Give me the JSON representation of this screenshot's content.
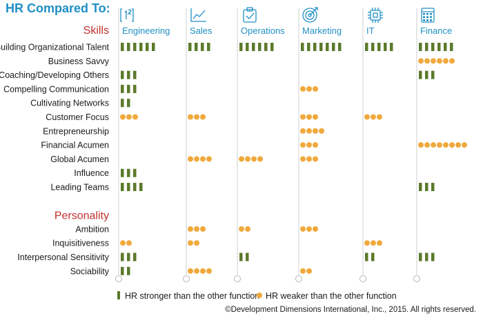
{
  "chart_data": {
    "type": "table",
    "title": "HR Compared To:",
    "columns": [
      "Engineering",
      "Sales",
      "Operations",
      "Marketing",
      "IT",
      "Finance"
    ],
    "column_icons": [
      "numbers-icon",
      "line-chart-icon",
      "clipboard-check-icon",
      "target-icon",
      "chip-icon",
      "calculator-icon"
    ],
    "sections": [
      {
        "name": "Skills",
        "rows": [
          {
            "label": "Building Organizational Talent",
            "values": [
              6,
              4,
              6,
              7,
              5,
              6
            ]
          },
          {
            "label": "Business Savvy",
            "values": [
              0,
              0,
              0,
              0,
              0,
              -6
            ]
          },
          {
            "label": "Coaching/Developing Others",
            "values": [
              3,
              0,
              0,
              0,
              0,
              3
            ]
          },
          {
            "label": "Compelling Communication",
            "values": [
              3,
              0,
              0,
              -3,
              0,
              0
            ]
          },
          {
            "label": "Cultivating Networks",
            "values": [
              2,
              0,
              0,
              0,
              0,
              0
            ]
          },
          {
            "label": "Customer Focus",
            "values": [
              -3,
              -3,
              0,
              -3,
              -3,
              0
            ]
          },
          {
            "label": "Entrepreneurship",
            "values": [
              0,
              0,
              0,
              -4,
              0,
              0
            ]
          },
          {
            "label": "Financial Acumen",
            "values": [
              0,
              0,
              0,
              -3,
              0,
              -8
            ]
          },
          {
            "label": "Global Acumen",
            "values": [
              0,
              -4,
              -4,
              -3,
              0,
              0
            ]
          },
          {
            "label": "Influence",
            "values": [
              3,
              0,
              0,
              0,
              0,
              0
            ]
          },
          {
            "label": "Leading Teams",
            "values": [
              4,
              0,
              0,
              0,
              0,
              3
            ]
          }
        ]
      },
      {
        "name": "Personality",
        "rows": [
          {
            "label": "Ambition",
            "values": [
              0,
              -3,
              -2,
              -3,
              0,
              0
            ]
          },
          {
            "label": "Inquisitiveness",
            "values": [
              -2,
              -2,
              0,
              0,
              -3,
              0
            ]
          },
          {
            "label": "Interpersonal Sensitivity",
            "values": [
              3,
              0,
              2,
              0,
              2,
              3
            ]
          },
          {
            "label": "Sociability",
            "values": [
              2,
              -4,
              0,
              -2,
              0,
              0
            ]
          }
        ]
      }
    ],
    "legend": [
      {
        "symbol": "bar",
        "color": "#5b7a2b",
        "label": "HR stronger than the other function"
      },
      {
        "symbol": "dot",
        "color": "#f0a93c",
        "label": "HR weaker than the other function"
      }
    ],
    "value_encoding": "positive = count of green bars (HR stronger); negative = count of orange dots (HR weaker)",
    "legend_placement": "bottom-left",
    "colors": {
      "stronger": "#5b7a2b",
      "weaker": "#f0a93c",
      "title": "#1f8fc4",
      "section": "#c0302e",
      "gridline": "#cfcfcf"
    }
  },
  "credit": "©Development Dimensions International, Inc., 2015. All rights reserved."
}
